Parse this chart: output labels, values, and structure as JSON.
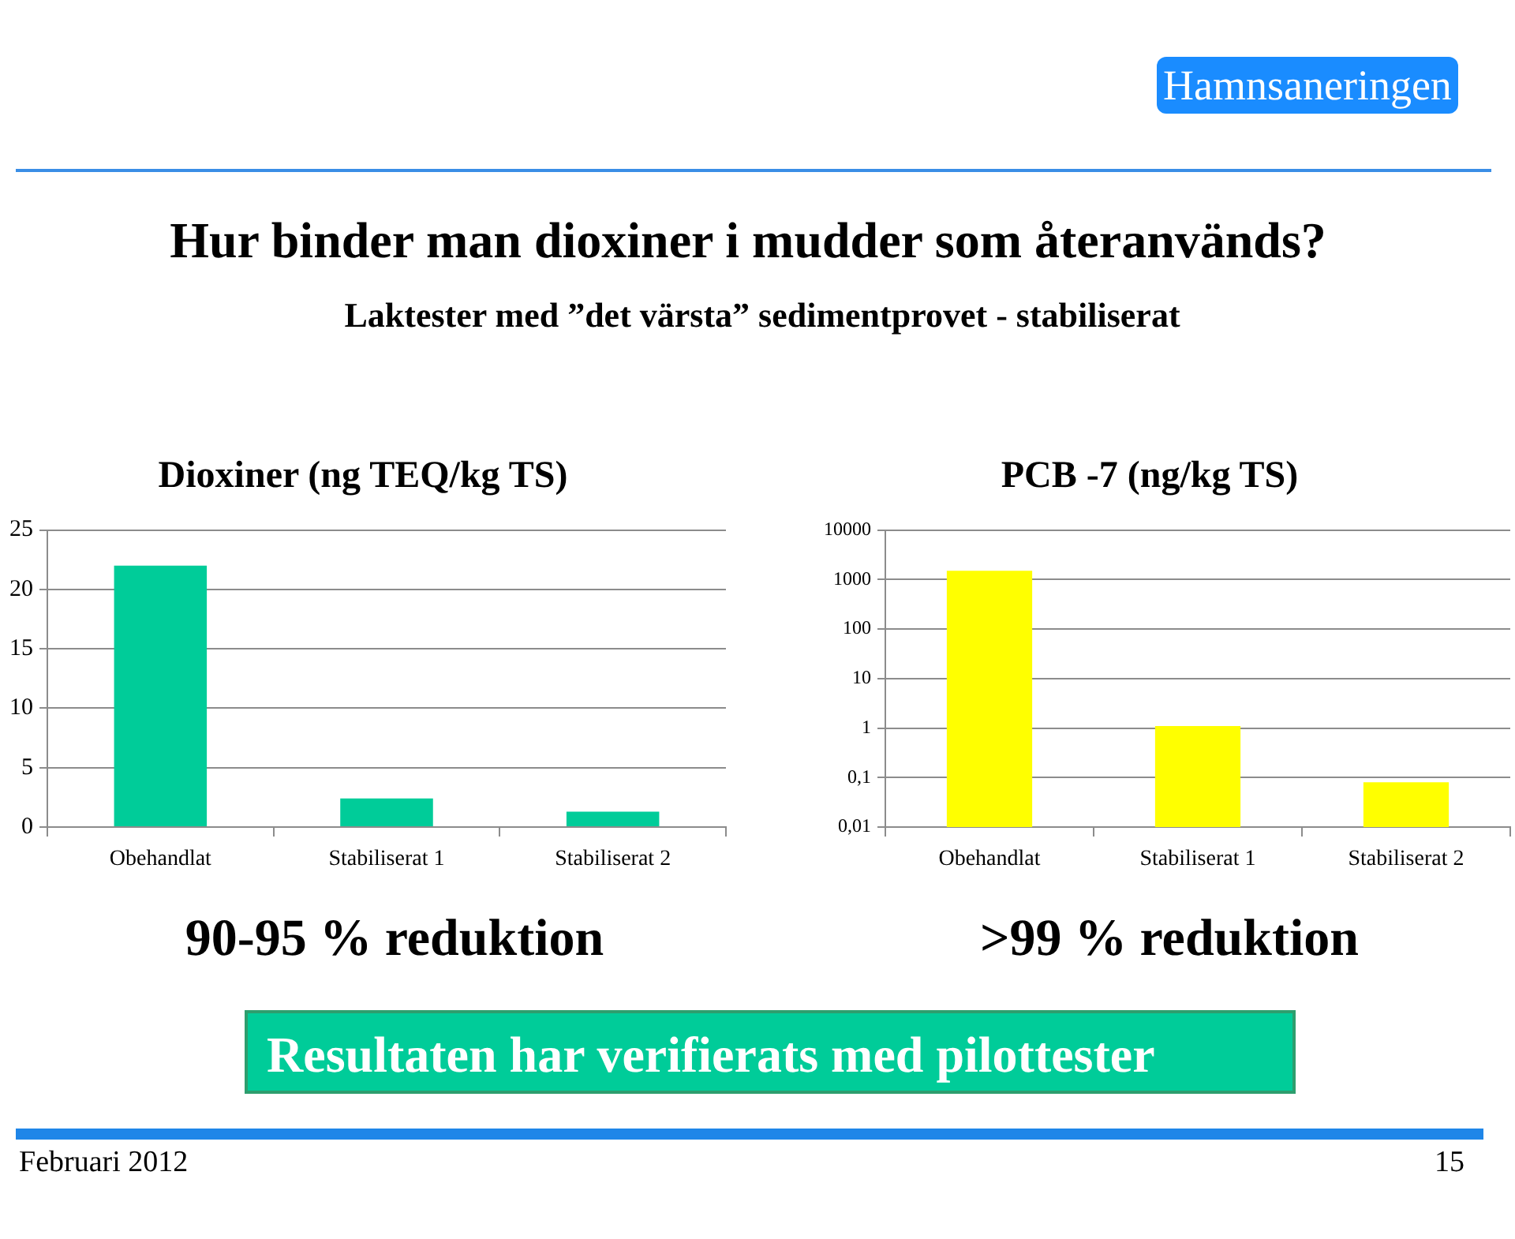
{
  "chart_data": [
    {
      "type": "other",
      "title": "Hur binder man dioxiner i mudder som återanvänds?",
      "subtitle": "Laktester med ”det värsta” sedimentprovet - stabiliserat",
      "annotations": [
        "Hamnsaneringen",
        "Resultaten har verifierats med pilottester",
        "Februari 2012",
        "15"
      ]
    },
    {
      "type": "bar",
      "title": "Dioxiner (ng TEQ/kg TS)",
      "categories": [
        "Obehandlat",
        "Stabiliserat 1",
        "Stabiliserat 2"
      ],
      "values": [
        22,
        2.4,
        1.3
      ],
      "color": "#00cc99",
      "ylim": [
        0,
        25
      ],
      "yticks": [
        0,
        5,
        10,
        15,
        20,
        25
      ],
      "grid": "y",
      "annotations": [
        "90-95 % reduktion"
      ]
    },
    {
      "type": "bar",
      "title": "PCB -7 (ng/kg TS)",
      "categories": [
        "Obehandlat",
        "Stabiliserat 1",
        "Stabiliserat 2"
      ],
      "values": [
        1500,
        1.1,
        0.08
      ],
      "color": "#ffff00",
      "log": true,
      "ylim": [
        0.01,
        10000
      ],
      "yticks": [
        {
          "value": 0.01,
          "label": "0,01"
        },
        {
          "value": 0.1,
          "label": "0,1"
        },
        1,
        10,
        100,
        1000,
        10000
      ],
      "grid": "y",
      "annotations": [
        ">99 % reduktion"
      ]
    }
  ]
}
